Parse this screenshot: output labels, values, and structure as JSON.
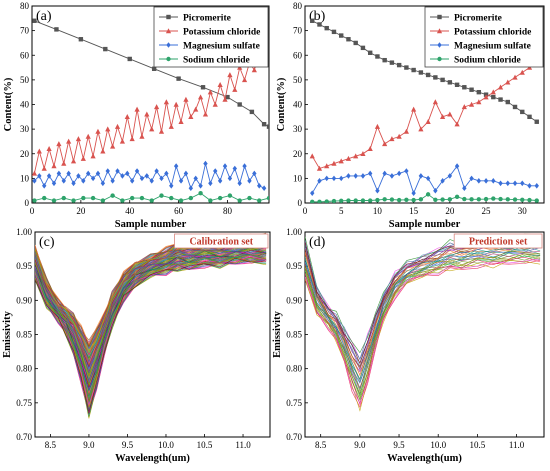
{
  "colors": {
    "picromerite": "#555555",
    "potassium_chloride": "#d9534f",
    "magnesium_sulfate": "#3a6fd8",
    "sodium_chloride": "#2ea36b",
    "set_label_border": "#d98880"
  },
  "chart_data": [
    {
      "panel": "(a)",
      "type": "line",
      "xlabel": "Sample number",
      "ylabel": "Content(%)",
      "xlim": [
        0,
        97
      ],
      "ylim": [
        0,
        80
      ],
      "xticks": [
        0,
        20,
        40,
        60,
        80
      ],
      "yticks": [
        0,
        10,
        20,
        30,
        40,
        50,
        60,
        70,
        80
      ],
      "legend_position": "top-right",
      "grid": false,
      "series": [
        {
          "name": "Picromerite",
          "key": "picromerite",
          "marker": "square",
          "x": [
            1,
            10,
            20,
            30,
            40,
            50,
            60,
            70,
            80,
            85,
            90,
            95,
            97
          ],
          "y": [
            74,
            70.5,
            66.5,
            62.5,
            58.5,
            54.5,
            50.5,
            47,
            43,
            40,
            37,
            32,
            31
          ]
        },
        {
          "name": "Potassium chloride",
          "key": "potassium_chloride",
          "marker": "triangle",
          "x": [
            1,
            3,
            5,
            7,
            9,
            11,
            13,
            15,
            17,
            19,
            21,
            23,
            25,
            27,
            29,
            31,
            33,
            35,
            37,
            39,
            41,
            43,
            45,
            47,
            49,
            51,
            53,
            55,
            57,
            59,
            61,
            63,
            65,
            67,
            69,
            71,
            73,
            75,
            77,
            79,
            81,
            83,
            85,
            87,
            89,
            91,
            93,
            95
          ],
          "y": [
            12,
            21,
            14,
            22,
            15,
            24,
            16,
            25,
            17,
            26,
            18,
            27,
            19,
            29,
            21,
            30,
            23,
            31,
            25,
            35,
            26,
            38,
            27,
            36,
            30,
            39,
            29,
            41,
            31,
            40,
            33,
            42,
            35,
            38,
            43,
            36,
            45,
            40,
            48,
            42,
            52,
            46,
            55,
            50,
            57,
            54,
            60,
            58
          ]
        },
        {
          "name": "Magnesium sulfate",
          "key": "magnesium_sulfate",
          "marker": "diamond",
          "x": [
            1,
            3,
            5,
            7,
            9,
            11,
            13,
            15,
            17,
            19,
            21,
            23,
            25,
            27,
            29,
            31,
            33,
            35,
            37,
            39,
            41,
            43,
            45,
            47,
            49,
            51,
            53,
            55,
            57,
            59,
            61,
            63,
            65,
            67,
            69,
            71,
            73,
            75,
            77,
            79,
            81,
            83,
            85,
            87,
            89,
            91,
            93,
            95
          ],
          "y": [
            9,
            11,
            7,
            11,
            8,
            12,
            9,
            12,
            8,
            11,
            9,
            12,
            10,
            12,
            8,
            13,
            9,
            13,
            11,
            12,
            9,
            13,
            10,
            11,
            9,
            13,
            10,
            12,
            7,
            15,
            9,
            12,
            6,
            10,
            7,
            16,
            8,
            13,
            9,
            15,
            10,
            14,
            8,
            15,
            9,
            12,
            7,
            6
          ]
        },
        {
          "name": "Sodium chloride",
          "key": "sodium_chloride",
          "marker": "circle",
          "x": [
            1,
            5,
            9,
            13,
            17,
            21,
            25,
            29,
            33,
            37,
            41,
            45,
            49,
            53,
            57,
            61,
            65,
            69,
            73,
            77,
            81,
            85,
            89,
            93,
            97
          ],
          "y": [
            1,
            2,
            1,
            2,
            1,
            2,
            2,
            1,
            3,
            1,
            2,
            2,
            1,
            3,
            2,
            1,
            2,
            4,
            1,
            2,
            3,
            1,
            2,
            1,
            2
          ]
        }
      ]
    },
    {
      "panel": "(b)",
      "type": "line",
      "xlabel": "Sample number",
      "ylabel": "Content(%)",
      "xlim": [
        0,
        33
      ],
      "ylim": [
        0,
        80
      ],
      "xticks": [
        0,
        5,
        10,
        15,
        20,
        25,
        30
      ],
      "yticks": [
        0,
        10,
        20,
        30,
        40,
        50,
        60,
        70,
        80
      ],
      "legend_position": "top-right",
      "grid": false,
      "series": [
        {
          "name": "Picromerite",
          "key": "picromerite",
          "marker": "square",
          "x": [
            1,
            2,
            3,
            4,
            5,
            6,
            7,
            8,
            9,
            10,
            11,
            12,
            13,
            14,
            15,
            16,
            17,
            18,
            19,
            20,
            21,
            22,
            23,
            24,
            25,
            26,
            27,
            28,
            29,
            30,
            31,
            32
          ],
          "y": [
            74,
            72.5,
            71,
            69.5,
            68,
            66.5,
            65,
            63,
            61,
            59.5,
            58,
            57,
            56,
            55,
            54,
            53,
            52,
            51,
            50,
            49,
            48,
            47,
            46,
            45,
            44,
            43,
            42,
            41,
            39,
            37,
            35,
            33
          ]
        },
        {
          "name": "Potassium chloride",
          "key": "potassium_chloride",
          "marker": "triangle",
          "x": [
            1,
            2,
            3,
            4,
            5,
            6,
            7,
            8,
            9,
            10,
            11,
            12,
            13,
            14,
            15,
            16,
            17,
            18,
            19,
            20,
            21,
            22,
            23,
            24,
            25,
            26,
            27,
            28,
            29,
            30,
            31,
            32
          ],
          "y": [
            19,
            14,
            15,
            16,
            17,
            18,
            19,
            20,
            22,
            31,
            24,
            26,
            27,
            29,
            38,
            30,
            33,
            41,
            35,
            36,
            32,
            39,
            40,
            41,
            43,
            45,
            47,
            49,
            51,
            53,
            55,
            57
          ]
        },
        {
          "name": "Magnesium sulfate",
          "key": "magnesium_sulfate",
          "marker": "diamond",
          "x": [
            1,
            2,
            3,
            4,
            5,
            6,
            7,
            8,
            9,
            10,
            11,
            12,
            13,
            14,
            15,
            16,
            17,
            18,
            19,
            20,
            21,
            22,
            23,
            24,
            25,
            26,
            27,
            28,
            29,
            30,
            31,
            32
          ],
          "y": [
            4,
            9,
            10,
            10,
            10,
            11,
            11,
            11,
            12,
            5,
            12,
            11,
            12,
            13,
            4,
            11,
            10,
            5,
            9,
            11,
            15,
            6,
            10,
            9,
            9,
            9,
            8,
            8,
            8,
            8,
            7,
            7
          ]
        },
        {
          "name": "Sodium chloride",
          "key": "sodium_chloride",
          "marker": "circle",
          "x": [
            1,
            2,
            3,
            4,
            5,
            6,
            7,
            8,
            9,
            10,
            11,
            12,
            13,
            14,
            15,
            16,
            17,
            18,
            19,
            20,
            21,
            22,
            23,
            24,
            25,
            26,
            27,
            28,
            29,
            30,
            31,
            32
          ],
          "y": [
            0.5,
            0.5,
            0.6,
            0.8,
            0.9,
            1,
            1,
            1,
            1,
            1.2,
            1.5,
            1.4,
            1.2,
            1.3,
            1.2,
            1.5,
            3.5,
            1.3,
            1.4,
            1.5,
            2.5,
            1.6,
            1.5,
            1.5,
            1.6,
            1.8,
            1.6,
            1.5,
            1.4,
            1.3,
            1.2,
            1
          ]
        }
      ]
    },
    {
      "panel": "(c)",
      "type": "line",
      "set_label": "Calibration set",
      "xlabel": "Wavelength(um)",
      "ylabel": "Emissivity",
      "xlim": [
        8.3,
        11.35
      ],
      "ylim": [
        0.7,
        1.0
      ],
      "xticks": [
        8.5,
        9.0,
        9.5,
        10.0,
        10.5,
        11.0
      ],
      "xtick_labels": [
        "8.5",
        "9.0",
        "9.5",
        "10.0",
        "10.5",
        "11.0"
      ],
      "yticks": [
        0.7,
        0.75,
        0.8,
        0.85,
        0.9,
        0.95,
        1.0
      ],
      "ytick_labels": [
        "0.70",
        "0.75",
        "0.80",
        "0.85",
        "0.90",
        "0.95",
        "1.00"
      ],
      "curve_count": 96,
      "x": [
        8.3,
        8.45,
        8.6,
        8.7,
        8.8,
        8.9,
        9.0,
        9.1,
        9.2,
        9.3,
        9.45,
        9.6,
        9.8,
        10.0,
        10.15,
        10.3,
        10.5,
        10.7,
        10.9,
        11.1,
        11.3
      ],
      "envelope_high": [
        0.98,
        0.93,
        0.9,
        0.89,
        0.88,
        0.86,
        0.84,
        0.86,
        0.88,
        0.91,
        0.94,
        0.955,
        0.965,
        0.975,
        0.985,
        0.985,
        0.99,
        0.985,
        0.99,
        0.995,
        0.995
      ],
      "envelope_low": [
        0.93,
        0.89,
        0.87,
        0.85,
        0.82,
        0.78,
        0.73,
        0.77,
        0.82,
        0.86,
        0.9,
        0.92,
        0.935,
        0.94,
        0.945,
        0.945,
        0.95,
        0.95,
        0.955,
        0.955,
        0.955
      ]
    },
    {
      "panel": "(d)",
      "type": "line",
      "set_label": "Prediction set",
      "xlabel": "Wavelength(um)",
      "ylabel": "Emissivity",
      "xlim": [
        8.3,
        11.35
      ],
      "ylim": [
        0.7,
        1.0
      ],
      "xticks": [
        8.5,
        9.0,
        9.5,
        10.0,
        10.5,
        11.0
      ],
      "xtick_labels": [
        "8.5",
        "9.0",
        "9.5",
        "10.0",
        "10.5",
        "11.0"
      ],
      "yticks": [
        0.7,
        0.75,
        0.8,
        0.85,
        0.9,
        0.95,
        1.0
      ],
      "ytick_labels": [
        "0.70",
        "0.75",
        "0.80",
        "0.85",
        "0.90",
        "0.95",
        "1.00"
      ],
      "curve_count": 32,
      "x": [
        8.3,
        8.45,
        8.6,
        8.7,
        8.8,
        8.9,
        9.0,
        9.1,
        9.2,
        9.3,
        9.45,
        9.6,
        9.8,
        10.0,
        10.15,
        10.3,
        10.5,
        10.7,
        10.9,
        11.1,
        11.3
      ],
      "envelope_high": [
        0.99,
        0.92,
        0.89,
        0.88,
        0.86,
        0.84,
        0.82,
        0.85,
        0.88,
        0.91,
        0.94,
        0.955,
        0.965,
        0.975,
        0.985,
        0.985,
        0.99,
        0.99,
        0.99,
        0.995,
        0.995
      ],
      "envelope_low": [
        0.93,
        0.88,
        0.86,
        0.84,
        0.81,
        0.77,
        0.74,
        0.78,
        0.83,
        0.87,
        0.905,
        0.925,
        0.935,
        0.94,
        0.945,
        0.945,
        0.95,
        0.95,
        0.955,
        0.955,
        0.955
      ]
    }
  ]
}
